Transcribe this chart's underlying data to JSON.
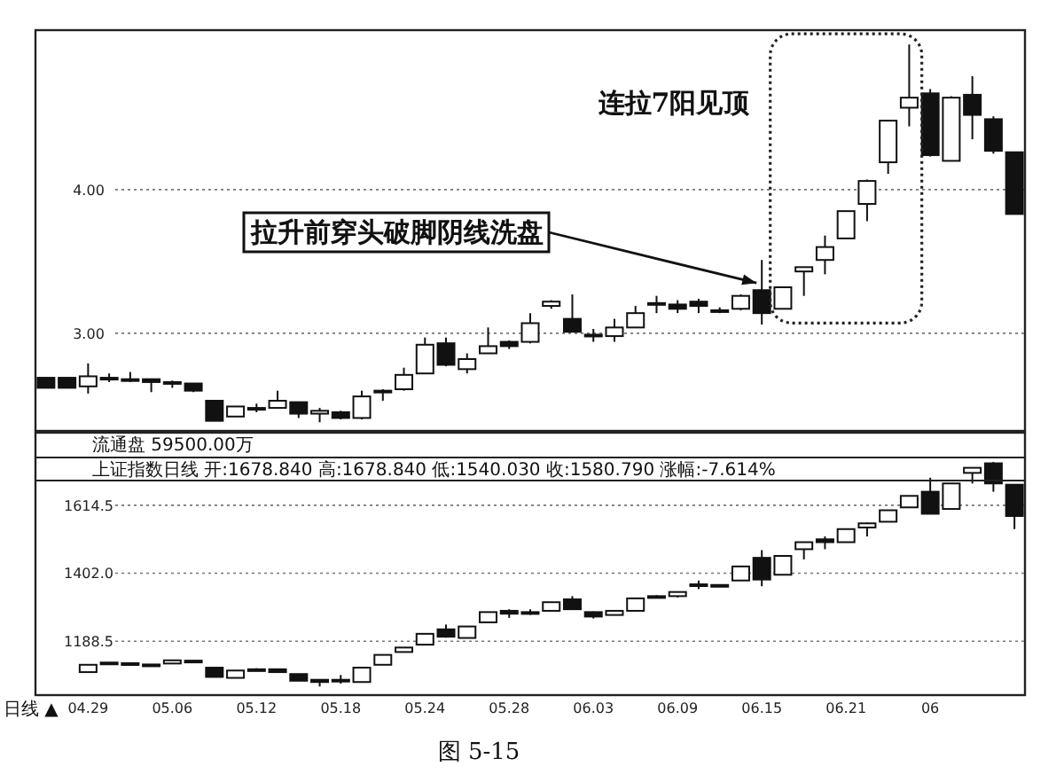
{
  "chart_data": [
    {
      "type": "candlestick",
      "categories": [
        null,
        null,
        null,
        null,
        null,
        null,
        null,
        null,
        null,
        null,
        null,
        null,
        null,
        null,
        null,
        null,
        null,
        null,
        null,
        null,
        null,
        null,
        null,
        null,
        null,
        null,
        null,
        null,
        null,
        null,
        null,
        null,
        null,
        null,
        null,
        null,
        null,
        null,
        null,
        null,
        null,
        null,
        null,
        null,
        null,
        null,
        null
      ],
      "ohlc": [
        [
          2.69,
          2.69,
          2.62,
          2.62
        ],
        [
          2.69,
          2.69,
          2.62,
          2.62
        ],
        [
          2.63,
          2.79,
          2.58,
          2.7
        ],
        [
          2.69,
          2.72,
          2.66,
          2.68
        ],
        [
          2.68,
          2.73,
          2.66,
          2.67
        ],
        [
          2.68,
          2.68,
          2.59,
          2.66
        ],
        [
          2.66,
          2.67,
          2.62,
          2.66
        ],
        [
          2.65,
          2.65,
          2.59,
          2.6
        ],
        [
          2.53,
          2.53,
          2.39,
          2.39
        ],
        [
          2.42,
          2.49,
          2.42,
          2.49
        ],
        [
          2.47,
          2.51,
          2.45,
          2.48
        ],
        [
          2.48,
          2.6,
          2.48,
          2.53
        ],
        [
          2.52,
          2.52,
          2.41,
          2.44
        ],
        [
          2.44,
          2.48,
          2.38,
          2.46
        ],
        [
          2.45,
          2.46,
          2.4,
          2.41
        ],
        [
          2.41,
          2.6,
          2.4,
          2.56
        ],
        [
          2.59,
          2.61,
          2.53,
          2.6
        ],
        [
          2.61,
          2.76,
          2.6,
          2.71
        ],
        [
          2.72,
          2.97,
          2.72,
          2.92
        ],
        [
          2.93,
          2.97,
          2.77,
          2.78
        ],
        [
          2.75,
          2.86,
          2.72,
          2.82
        ],
        [
          2.86,
          3.04,
          2.86,
          2.91
        ],
        [
          2.94,
          2.95,
          2.89,
          2.91
        ],
        [
          2.94,
          3.14,
          2.93,
          3.07
        ],
        [
          3.19,
          3.23,
          3.17,
          3.22
        ],
        [
          3.1,
          3.27,
          3.01,
          3.01
        ],
        [
          2.98,
          3.03,
          2.94,
          2.99
        ],
        [
          2.98,
          3.1,
          2.94,
          3.04
        ],
        [
          3.04,
          3.19,
          3.04,
          3.14
        ],
        [
          3.2,
          3.26,
          3.14,
          3.21
        ],
        [
          3.2,
          3.23,
          3.14,
          3.17
        ],
        [
          3.22,
          3.24,
          3.14,
          3.19
        ],
        [
          3.16,
          3.18,
          3.14,
          3.16
        ],
        [
          3.17,
          3.27,
          3.16,
          3.26
        ],
        [
          3.3,
          3.51,
          3.06,
          3.14
        ],
        [
          3.17,
          3.32,
          3.17,
          3.32
        ],
        [
          3.43,
          3.46,
          3.26,
          3.46
        ],
        [
          3.51,
          3.68,
          3.41,
          3.6
        ],
        [
          3.66,
          3.85,
          3.66,
          3.85
        ],
        [
          3.9,
          4.07,
          3.78,
          4.06
        ],
        [
          4.19,
          4.48,
          4.11,
          4.48
        ],
        [
          4.57,
          5.01,
          4.44,
          4.64
        ],
        [
          4.67,
          4.7,
          4.23,
          4.24
        ],
        [
          4.2,
          4.65,
          4.2,
          4.64
        ],
        [
          4.66,
          4.79,
          4.35,
          4.52
        ],
        [
          4.49,
          4.51,
          4.25,
          4.27
        ],
        [
          4.26,
          4.26,
          3.83,
          3.83
        ]
      ],
      "ylim": [
        2.32,
        5.11
      ],
      "yticks": [
        {
          "value": 3,
          "label": "3.00"
        },
        {
          "value": 4,
          "label": "4.00"
        }
      ],
      "tick_labels": "y",
      "grid": "y",
      "annotations": [
        "连拉7阳见顶",
        "拉升前穿头破脚阴线洗盘"
      ]
    },
    {
      "type": "candlestick",
      "categories": [
        null,
        null,
        "04.29",
        null,
        null,
        null,
        "05.06",
        null,
        null,
        null,
        "05.12",
        null,
        null,
        null,
        "05.18",
        null,
        null,
        null,
        "05.24",
        null,
        null,
        null,
        "05.28",
        null,
        null,
        null,
        "06.03",
        null,
        null,
        null,
        "06.09",
        null,
        null,
        null,
        "06.15",
        null,
        null,
        null,
        "06.21",
        null,
        null,
        null,
        "06",
        null,
        null,
        null,
        null
      ],
      "ohlc": [
        null,
        null,
        [
          1092,
          1115,
          1092,
          1115
        ],
        [
          1122,
          1123,
          1120,
          1121
        ],
        [
          1120,
          1121,
          1117,
          1118
        ],
        [
          1116,
          1117,
          1113,
          1114
        ],
        [
          1119,
          1129,
          1119,
          1129
        ],
        [
          1128,
          1129,
          1125,
          1126
        ],
        [
          1106,
          1106,
          1077,
          1077
        ],
        [
          1074,
          1097,
          1074,
          1097
        ],
        [
          1100,
          1104,
          1098,
          1101
        ],
        [
          1101,
          1101,
          1092,
          1092
        ],
        [
          1086,
          1086,
          1065,
          1065
        ],
        [
          1068,
          1068,
          1047,
          1061
        ],
        [
          1067,
          1083,
          1056,
          1068
        ],
        [
          1061,
          1106,
          1061,
          1106
        ],
        [
          1115,
          1146,
          1115,
          1146
        ],
        [
          1155,
          1169,
          1155,
          1169
        ],
        [
          1178,
          1212,
          1178,
          1212
        ],
        [
          1226,
          1241,
          1200,
          1203
        ],
        [
          1199,
          1235,
          1199,
          1235
        ],
        [
          1248,
          1280,
          1248,
          1280
        ],
        [
          1284,
          1289,
          1262,
          1275
        ],
        [
          1279,
          1289,
          1271,
          1280
        ],
        [
          1284,
          1311,
          1284,
          1311
        ],
        [
          1320,
          1330,
          1289,
          1289
        ],
        [
          1280,
          1282,
          1260,
          1266
        ],
        [
          1271,
          1284,
          1271,
          1284
        ],
        [
          1284,
          1323,
          1284,
          1323
        ],
        [
          1329,
          1333,
          1326,
          1330
        ],
        [
          1330,
          1345,
          1326,
          1343
        ],
        [
          1366,
          1379,
          1352,
          1367
        ],
        [
          1365,
          1366,
          1363,
          1364
        ],
        [
          1379,
          1423,
          1379,
          1423
        ],
        [
          1450,
          1474,
          1361,
          1382
        ],
        [
          1397,
          1456,
          1397,
          1456
        ],
        [
          1477,
          1499,
          1445,
          1499
        ],
        [
          1508,
          1517,
          1477,
          1499
        ],
        [
          1499,
          1540,
          1499,
          1540
        ],
        [
          1545,
          1560,
          1517,
          1558
        ],
        [
          1563,
          1599,
          1563,
          1599
        ],
        [
          1608,
          1644,
          1608,
          1644
        ],
        [
          1657,
          1701,
          1588,
          1588
        ],
        [
          1603,
          1683,
          1603,
          1683
        ],
        [
          1716,
          1732,
          1683,
          1732
        ],
        [
          1746,
          1750,
          1657,
          1683
        ],
        [
          1679,
          1679,
          1540,
          1581
        ]
      ],
      "ylim": [
        1020,
        1842
      ],
      "yticks": [
        {
          "value": 1188.5,
          "label": "1188.5"
        },
        {
          "value": 1402,
          "label": "1402.0"
        },
        {
          "value": 1614.5,
          "label": "1614.5"
        }
      ],
      "grid": "y",
      "annotations": [
        "流通盘 59500.00万",
        "上证指数日线  开:1678.840  高:1678.840  低:1540.030  收:1580.790  涨幅:-7.614%",
        "日线 ▲",
        "图 5-15"
      ]
    }
  ]
}
